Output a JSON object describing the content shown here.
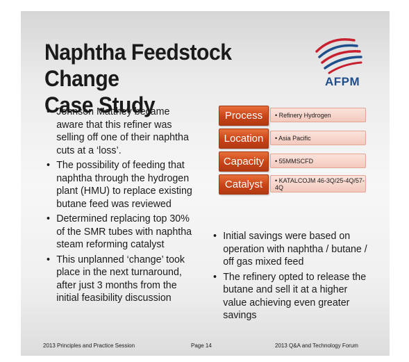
{
  "slide": {
    "title_line1": "Naphtha Feedstock Change",
    "title_line2": "Case Study",
    "logo_text": "AFPM",
    "bullet_glyph": "•",
    "left_bullets": [
      "Johnson Matthey became aware that this refiner was selling off one of their naphtha cuts at a ‘loss’.",
      "The possibility of feeding that naphtha through the hydrogen plant (HMU) to replace existing butane feed was reviewed",
      "Determined replacing top 30% of the SMR tubes with naphtha steam reforming catalyst",
      "This unplanned ‘change’ took place in the next turnaround, after just 3 months from the initial feasibility discussion"
    ],
    "right_bullets": [
      "Initial savings were based on operation with naphtha / butane / off gas mixed feed",
      "The refinery opted to release the butane and sell it at a higher value achieving even greater savings"
    ],
    "table": [
      {
        "label": "Process",
        "value": "• Refinery Hydrogen"
      },
      {
        "label": "Location",
        "value": "• Asia Pacific"
      },
      {
        "label": "Capacity",
        "value": "• 55MMSCFD"
      },
      {
        "label": "Catalyst",
        "value": "• KATALCOJM 46-3Q/25-4Q/57-4Q"
      }
    ],
    "footer": {
      "left": "2013 Principles and Practice Session",
      "center": "Page 14",
      "right": "2013 Q&A and Technology Forum"
    }
  },
  "colors": {
    "label_bg": "#c84317",
    "value_bg": "#f3c9bd",
    "logo_blue": "#1f4e8c",
    "logo_red": "#c8202f"
  }
}
